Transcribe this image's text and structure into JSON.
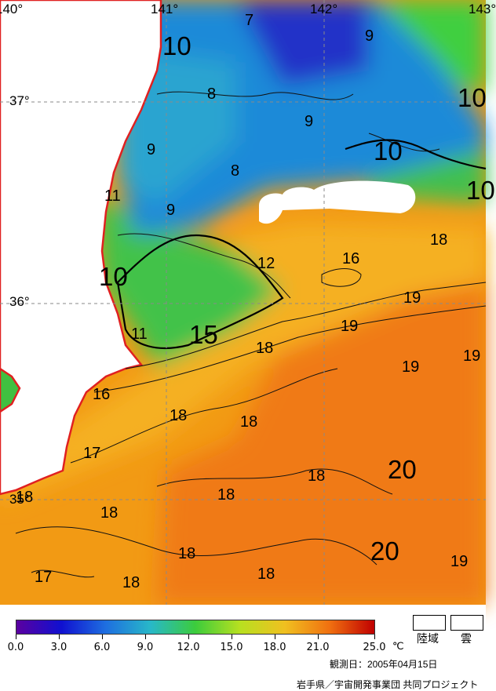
{
  "map": {
    "longitudes": [
      "140°",
      "141°",
      "142°",
      "143°"
    ],
    "latitudes": [
      "37°",
      "36°",
      "35°"
    ],
    "isotherms_small": [
      "7",
      "9",
      "8",
      "9",
      "9",
      "8",
      "9",
      "11",
      "12",
      "16",
      "18",
      "19",
      "19",
      "19",
      "19",
      "18",
      "11",
      "16",
      "18",
      "18",
      "17",
      "18",
      "18",
      "18",
      "18",
      "18",
      "17",
      "18",
      "19",
      "18"
    ],
    "isotherms_large": [
      "10",
      "10",
      "10",
      "10",
      "10",
      "15",
      "20",
      "20"
    ]
  },
  "legend": {
    "ticks": [
      "0.0",
      "3.0",
      "6.0",
      "9.0",
      "12.0",
      "15.0",
      "18.0",
      "21.0",
      "25.0"
    ],
    "unit": "℃",
    "colors": [
      "#5b00a0",
      "#1010d0",
      "#1e6fe0",
      "#28b8c8",
      "#3ccc3c",
      "#b8e020",
      "#f0c020",
      "#f07010",
      "#c00000"
    ],
    "land_label": "陸域",
    "cloud_label": "雲"
  },
  "footer": {
    "observation_date": "観測日：2005年04月15日",
    "credit": "岩手県／宇宙開発事業団 共同プロジェクト"
  }
}
